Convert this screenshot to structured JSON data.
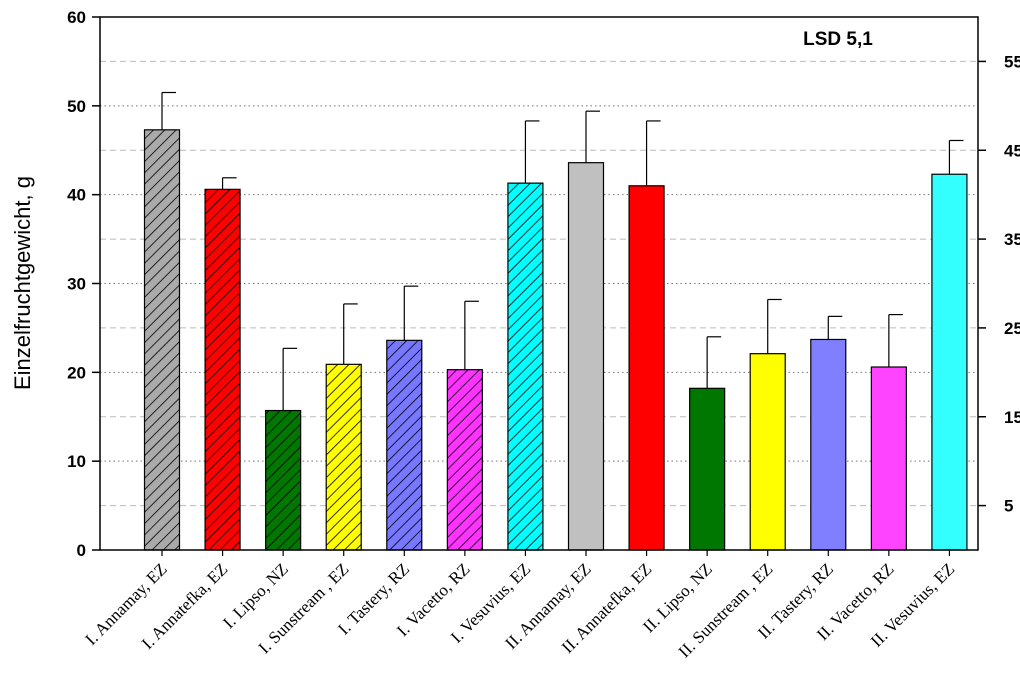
{
  "chart_data": {
    "type": "bar",
    "ylabel": "Einzelfruchtgewicht, g",
    "annotation": "LSD 5,1",
    "ylim": [
      0,
      60
    ],
    "yticks": [
      0,
      10,
      20,
      30,
      40,
      50,
      60
    ],
    "y2ticks": [
      5,
      15,
      25,
      35,
      45,
      55
    ],
    "grid": true,
    "categories": [
      "I. Annamay, EZ",
      "I. Annatefka, EZ",
      "I. Lipso, NZ",
      "I. Sunstream , EZ",
      "I. Tastery, RZ",
      "I. Vacetto, RZ",
      "I. Vesuvius, EZ",
      "II. Annamay, EZ",
      "II. Annatefka, EZ",
      "II. Lipso, NZ",
      "II. Sunstream , EZ",
      "II. Tastery, RZ",
      "II. Vacetto, RZ",
      "II. Vesuvius, EZ"
    ],
    "values": [
      47.3,
      40.6,
      15.7,
      20.9,
      23.6,
      20.3,
      41.3,
      43.6,
      41.0,
      18.2,
      22.1,
      23.7,
      20.6,
      42.3
    ],
    "errors": [
      4.2,
      1.3,
      7.0,
      6.8,
      6.1,
      7.7,
      7.0,
      5.8,
      7.3,
      5.8,
      6.1,
      2.6,
      5.9,
      3.8
    ],
    "colors": [
      "#aaaaaa",
      "#ff0000",
      "#007700",
      "#ffff00",
      "#7777ff",
      "#ff33ff",
      "#00ffff",
      "#c0c0c0",
      "#ff0000",
      "#007700",
      "#ffff00",
      "#7f7fff",
      "#ff44ff",
      "#33ffff"
    ],
    "hatched": [
      true,
      true,
      true,
      true,
      true,
      true,
      true,
      false,
      false,
      false,
      false,
      false,
      false,
      false
    ]
  }
}
